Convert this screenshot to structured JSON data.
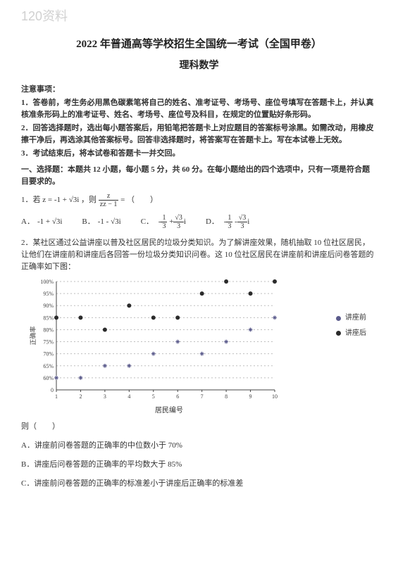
{
  "watermark": "120资料",
  "title_main": "2022 年普通高等学校招生全国统一考试（全国甲卷）",
  "title_sub": "理科数学",
  "notice": {
    "head": "注意事项：",
    "items": [
      "1．答卷前，考生务必用黑色碳素笔将自己的姓名、准考证号、考场号、座位号填写在答题卡上，并认真核准条形码上的准考证号、姓名、考场号、座位号及科目，在规定的位置贴好条形码。",
      "2．回答选择题时，选出每小题答案后，用铅笔把答题卡上对应题目的答案标号涂黑。如需改动，用橡皮擦干净后，再选涂其他答案标号。回答非选择题时，将答案写在答题卡上。写在本试卷上无效。",
      "3．考试结束后，将本试卷和答题卡一并交回。"
    ]
  },
  "section1_head": "一、选择题：本题共 12 小题，每小题 5 分，共 60 分。在每小题给出的四个选项中，只有一项是符合题目要求的。",
  "q1": {
    "stem_pre": "1．若",
    "z_eq": "z = -1 + √3i",
    "mid": "，则",
    "frac_top": "z",
    "frac_bot": "zz̄ - 1",
    "eq": " = （　　）",
    "opts": {
      "A": "-1 + √3i",
      "B": "-1 - √3i",
      "C_num1": "1",
      "C_num2": "√3",
      "C_den": "3",
      "D_num1": "1",
      "D_num2": "√3",
      "D_den": "3"
    }
  },
  "q2": {
    "stem": "2．某社区通过公益讲座以普及社区居民的垃圾分类知识。为了解讲座效果，随机抽取 10 位社区居民，让他们在讲座前和讲座后各回答一份垃圾分类知识问卷。这 10 位社区居民在讲座前和讲座后问卷答题的正确率如下图：",
    "chart": {
      "y_ticks": [
        "100%",
        "95%",
        "90%",
        "85%",
        "80%",
        "75%",
        "70%",
        "65%",
        "60%",
        "0"
      ],
      "y_label": "正确率",
      "x_ticks": [
        "1",
        "2",
        "3",
        "4",
        "5",
        "6",
        "7",
        "8",
        "9",
        "10"
      ],
      "x_label": "居民编号",
      "legend_before": "讲座前",
      "legend_after": "讲座后",
      "color_before": "#5b5b8c",
      "color_after": "#2b2b2b",
      "grid_color": "#bfbfbf",
      "before": [
        60,
        60,
        65,
        65,
        70,
        75,
        70,
        75,
        80,
        85
      ],
      "after": [
        85,
        85,
        80,
        90,
        85,
        85,
        95,
        100,
        95,
        100
      ],
      "ylim": [
        55,
        100
      ]
    },
    "then": "则（　　）",
    "optA": "A．讲座前问卷答题的正确率的中位数小于 70%",
    "optB": "B．讲座后问卷答题的正确率的平均数大于 85%",
    "optC": "C．讲座前问卷答题的正确率的标准差小于讲座后正确率的标准差"
  }
}
